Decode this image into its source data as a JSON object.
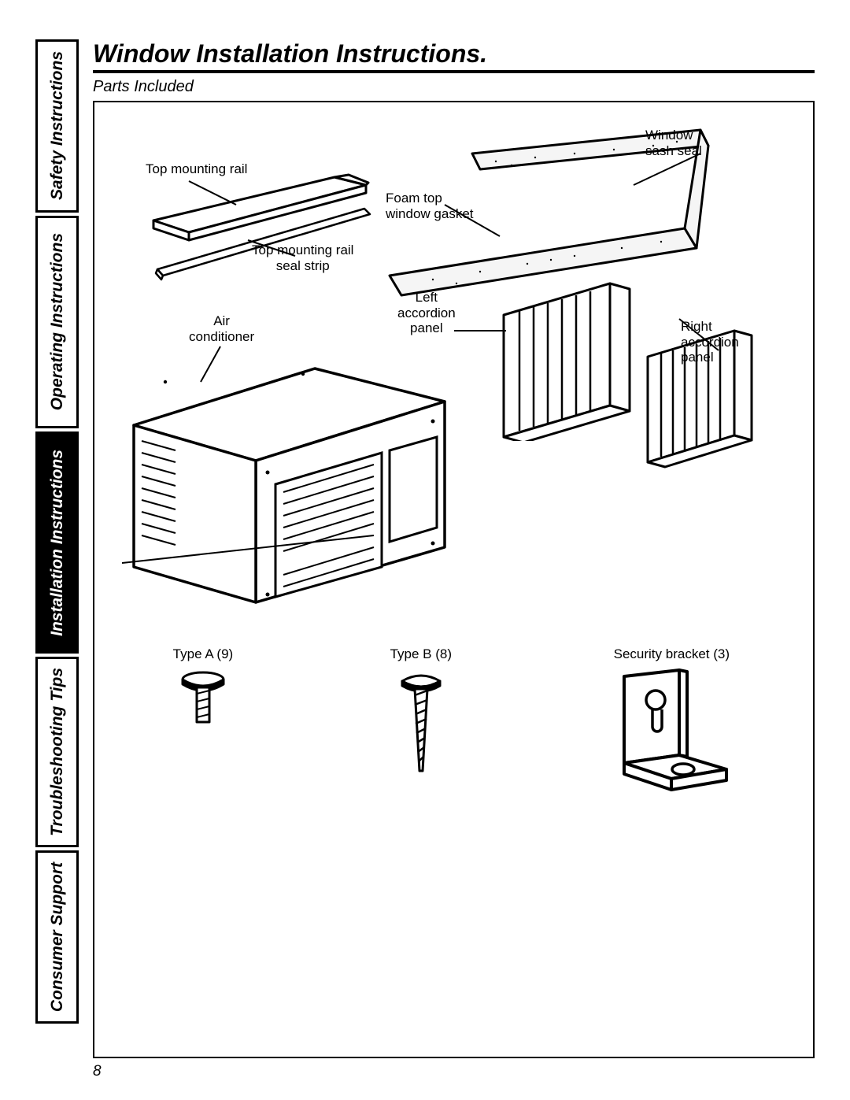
{
  "page_number": "8",
  "title": "Window Installation Instructions.",
  "subtitle": "Parts Included",
  "tabs": [
    {
      "label": "Safety Instructions",
      "active": false
    },
    {
      "label": "Operating Instructions",
      "active": false
    },
    {
      "label": "Installation Instructions",
      "active": true
    },
    {
      "label": "Troubleshooting Tips",
      "active": false
    },
    {
      "label": "Consumer Support",
      "active": false
    }
  ],
  "parts_diagram": {
    "labels": {
      "top_mounting_rail": "Top mounting rail",
      "window_sash_seal": "Window\nsash seal",
      "foam_top_window_gasket": "Foam top\nwindow gasket",
      "top_mounting_rail_seal_strip": "Top mounting rail\nseal strip",
      "air_conditioner": "Air\nconditioner",
      "left_accordion_panel": "Left\naccordion\npanel",
      "right_accordion_panel": "Right\naccordion\npanel"
    },
    "hardware": [
      {
        "name": "Type A",
        "qty": 9,
        "label": "Type A (9)"
      },
      {
        "name": "Type B",
        "qty": 8,
        "label": "Type B (8)"
      },
      {
        "name": "Security bracket",
        "qty": 3,
        "label": "Security bracket (3)"
      }
    ],
    "colors": {
      "line": "#000000",
      "fill": "#ffffff",
      "bg": "#ffffff",
      "dotfill": "#f5f5f5"
    }
  }
}
